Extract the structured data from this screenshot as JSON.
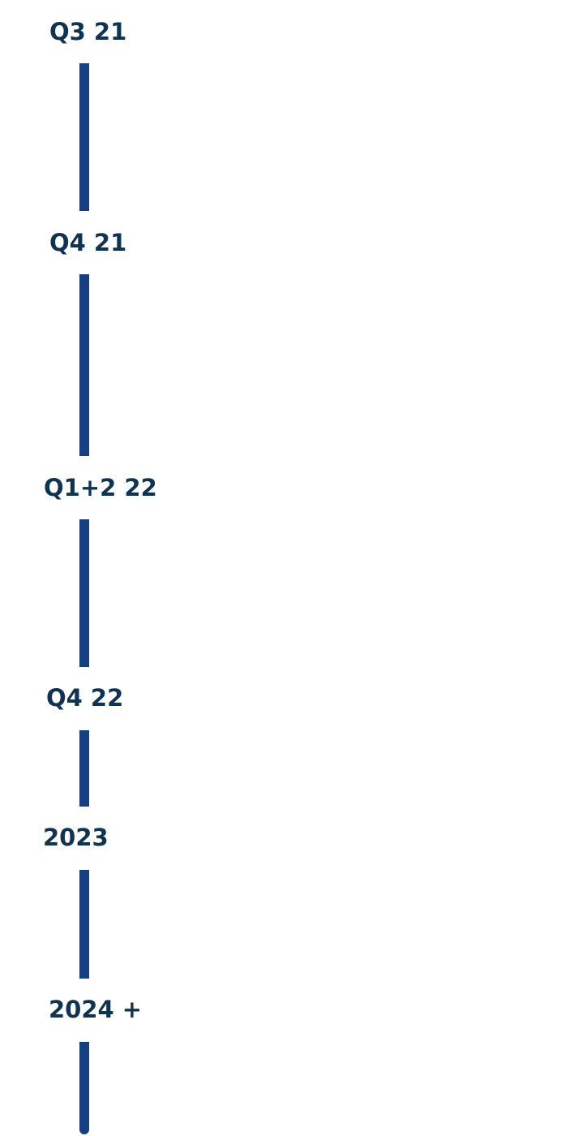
{
  "timeline": {
    "milestones": [
      {
        "label": "Q3 21"
      },
      {
        "label": "Q4 21"
      },
      {
        "label": "Q1+2 22"
      },
      {
        "label": "Q4 22"
      },
      {
        "label": "2023"
      },
      {
        "label": "2024 +"
      }
    ],
    "colors": {
      "label_text": "#0f3453",
      "connector_line": "#163f82",
      "background": "#ffffff"
    }
  }
}
